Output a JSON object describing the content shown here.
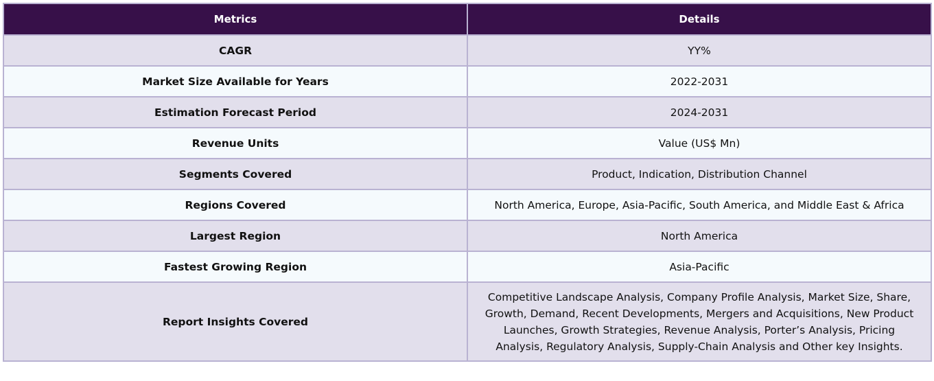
{
  "table": {
    "headers": {
      "metrics": "Metrics",
      "details": "Details"
    },
    "rows": [
      {
        "metric": "CAGR",
        "detail": "YY%"
      },
      {
        "metric": "Market Size Available for Years",
        "detail": "2022-2031"
      },
      {
        "metric": "Estimation Forecast Period",
        "detail": "2024-2031"
      },
      {
        "metric": "Revenue Units",
        "detail": "Value (US$ Mn)"
      },
      {
        "metric": "Segments Covered",
        "detail": "Product, Indication, Distribution Channel"
      },
      {
        "metric": "Regions Covered",
        "detail": "North America, Europe, Asia-Pacific, South America, and Middle East & Africa"
      },
      {
        "metric": "Largest Region",
        "detail": "North America"
      },
      {
        "metric": "Fastest Growing Region",
        "detail": "Asia-Pacific"
      },
      {
        "metric": "Report Insights Covered",
        "detail": "Competitive Landscape Analysis, Company Profile Analysis, Market Size, Share, Growth, Demand, Recent Developments, Mergers and Acquisitions, New Product Launches, Growth Strategies, Revenue Analysis, Porter’s Analysis, Pricing Analysis, Regulatory Analysis, Supply-Chain Analysis and Other key Insights."
      }
    ]
  },
  "colors": {
    "header_bg": "#371049",
    "header_text": "#ffffff",
    "row_odd_bg": "#e2dfec",
    "row_even_bg": "#f5fafd",
    "border": "#b9b2d2"
  }
}
